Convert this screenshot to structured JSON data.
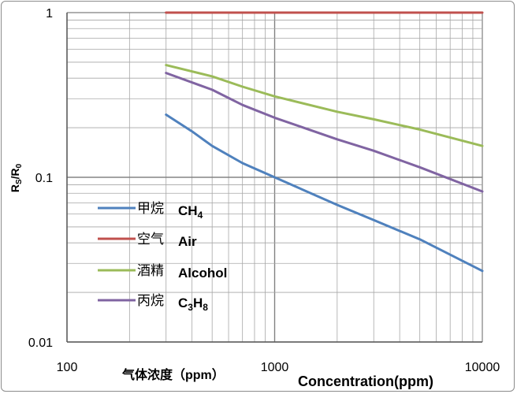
{
  "chart_data": {
    "type": "line",
    "x_scale": "log",
    "y_scale": "log",
    "xlim": [
      100,
      10000
    ],
    "ylim": [
      0.01,
      1
    ],
    "x_ticks": [
      "100",
      "1000",
      "10000"
    ],
    "y_ticks": [
      "0.01",
      "0.1",
      "1"
    ],
    "grid": true,
    "ylabel": "Rs/R0",
    "xlabel_cn": "气体浓度（ppm）",
    "xlabel_en": "Concentration(ppm)",
    "legend_position": "left",
    "series": [
      {
        "name_cn": "甲烷",
        "name_en": "CH4",
        "color": "#4f81bd",
        "x": [
          300,
          400,
          500,
          700,
          1000,
          2000,
          3000,
          5000,
          10000
        ],
        "y": [
          0.24,
          0.19,
          0.155,
          0.122,
          0.1,
          0.068,
          0.055,
          0.042,
          0.027
        ]
      },
      {
        "name_cn": "空气",
        "name_en": "Air",
        "color": "#c0504d",
        "x": [
          300,
          10000
        ],
        "y": [
          1.0,
          1.0
        ]
      },
      {
        "name_cn": "酒精",
        "name_en": "Alcohol",
        "color": "#9bbb59",
        "x": [
          300,
          500,
          700,
          1000,
          2000,
          3000,
          5000,
          10000
        ],
        "y": [
          0.48,
          0.41,
          0.355,
          0.31,
          0.25,
          0.225,
          0.195,
          0.155
        ]
      },
      {
        "name_cn": "丙烷",
        "name_en": "C3H8",
        "color": "#8064a2",
        "x": [
          300,
          500,
          700,
          1000,
          2000,
          3000,
          5000,
          10000
        ],
        "y": [
          0.43,
          0.34,
          0.275,
          0.23,
          0.17,
          0.145,
          0.115,
          0.082
        ]
      }
    ]
  }
}
